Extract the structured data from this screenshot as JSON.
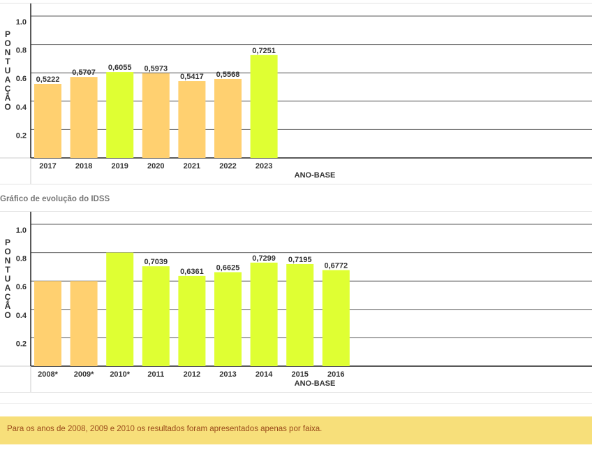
{
  "chart_data": [
    {
      "type": "bar",
      "title": "",
      "ylabel": "PONTUAÇÃO",
      "xlabel": "ANO-BASE",
      "ylim": [
        0,
        1.0
      ],
      "yticks": [
        "0.2",
        "0.4",
        "0.6",
        "0.8",
        "1.0"
      ],
      "categories": [
        "2017",
        "2018",
        "2019",
        "2020",
        "2021",
        "2022",
        "2023"
      ],
      "values": [
        0.5222,
        0.5707,
        0.6055,
        0.5973,
        0.5417,
        0.5568,
        0.7251
      ],
      "labels": [
        "0,5222",
        "0,5707",
        "0,6055",
        "0,5973",
        "0,5417",
        "0,5568",
        "0,7251"
      ],
      "colors": [
        "#ffd070",
        "#ffd070",
        "#dfff33",
        "#ffd070",
        "#ffd070",
        "#ffd070",
        "#dfff33"
      ]
    },
    {
      "type": "bar",
      "title": "Gráfico de evolução do IDSS",
      "ylabel": "PONTUAÇÃO",
      "xlabel": "ANO-BASE",
      "ylim": [
        0,
        1.0
      ],
      "yticks": [
        "0.2",
        "0.4",
        "0.6",
        "0.8",
        "1.0"
      ],
      "categories": [
        "2008*",
        "2009*",
        "2010*",
        "2011",
        "2012",
        "2013",
        "2014",
        "2015",
        "2016"
      ],
      "values": [
        0.6,
        0.6,
        0.8,
        0.7039,
        0.6361,
        0.6625,
        0.7299,
        0.7195,
        0.6772
      ],
      "labels": [
        "",
        "",
        "",
        "0,7039",
        "0,6361",
        "0,6625",
        "0,7299",
        "0,7195",
        "0,6772"
      ],
      "colors": [
        "#ffd070",
        "#ffd070",
        "#dfff33",
        "#dfff33",
        "#dfff33",
        "#dfff33",
        "#dfff33",
        "#dfff33",
        "#dfff33"
      ]
    }
  ],
  "note": "Para os anos de 2008, 2009 e 2010 os resultados foram apresentados apenas por faixa."
}
